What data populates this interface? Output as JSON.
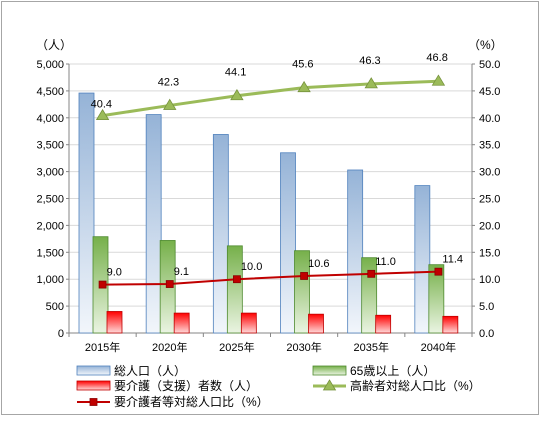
{
  "chart_data": {
    "type": "bar+line",
    "categories": [
      "2015年",
      "2020年",
      "2025年",
      "2030年",
      "2035年",
      "2040年"
    ],
    "left_axis": {
      "unit": "（人）",
      "ylim": [
        0,
        5000
      ],
      "ticks": [
        0,
        500,
        1000,
        1500,
        2000,
        2500,
        3000,
        3500,
        4000,
        4500,
        5000
      ],
      "tick_labels": [
        "0",
        "500",
        "1,000",
        "1,500",
        "2,000",
        "2,500",
        "3,000",
        "3,500",
        "4,000",
        "4,500",
        "5,000"
      ]
    },
    "right_axis": {
      "unit": "（%）",
      "ylim": [
        0,
        50
      ],
      "ticks": [
        0,
        5,
        10,
        15,
        20,
        25,
        30,
        35,
        40,
        45,
        50
      ],
      "tick_labels": [
        "0.0",
        "5.0",
        "10.0",
        "15.0",
        "20.0",
        "25.0",
        "30.0",
        "35.0",
        "40.0",
        "45.0",
        "50.0"
      ]
    },
    "grid": true,
    "legend_position": "bottom",
    "series": [
      {
        "name": "総人口（人）",
        "type": "bar",
        "axis": "left",
        "color": "#4f81bd",
        "values": [
          4460,
          4060,
          3690,
          3350,
          3030,
          2740
        ]
      },
      {
        "name": "65歳以上（人）",
        "type": "bar",
        "axis": "left",
        "color": "#70a845",
        "values": [
          1790,
          1720,
          1620,
          1530,
          1400,
          1270
        ]
      },
      {
        "name": "要介護（支援）者数（人）",
        "type": "bar",
        "axis": "left",
        "color": "#e02020",
        "values": [
          400,
          370,
          370,
          350,
          330,
          310
        ]
      },
      {
        "name": "高齢者対総人口比（%）",
        "type": "line",
        "axis": "right",
        "color": "#9bbb59",
        "marker": "triangle",
        "values": [
          40.4,
          42.3,
          44.1,
          45.6,
          46.3,
          46.8
        ],
        "labels": [
          "40.4",
          "42.3",
          "44.1",
          "45.6",
          "46.3",
          "46.8"
        ]
      },
      {
        "name": "要介護者等対総人口比（%）",
        "type": "line",
        "axis": "right",
        "color": "#c00000",
        "marker": "square",
        "values": [
          9.0,
          9.1,
          10.0,
          10.6,
          11.0,
          11.4
        ],
        "labels": [
          "9.0",
          "9.1",
          "10.0",
          "10.6",
          "11.0",
          "11.4"
        ]
      }
    ]
  }
}
